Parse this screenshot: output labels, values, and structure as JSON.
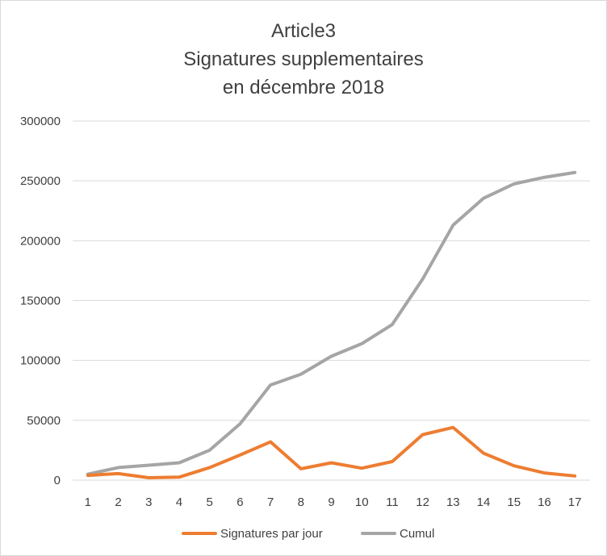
{
  "chart_data": {
    "type": "line",
    "title_lines": [
      "Article3",
      "Signatures supplementaires",
      "en décembre  2018"
    ],
    "xlabel": "",
    "ylabel": "",
    "x": [
      1,
      2,
      3,
      4,
      5,
      6,
      7,
      8,
      9,
      10,
      11,
      12,
      13,
      14,
      15,
      16,
      17
    ],
    "ylim": [
      0,
      300000
    ],
    "yticks": [
      0,
      50000,
      100000,
      150000,
      200000,
      250000,
      300000
    ],
    "grid": true,
    "legend_position": "bottom",
    "series": [
      {
        "name": "Signatures par jour",
        "color": "#ED7D31",
        "values": [
          4000,
          5500,
          2000,
          2500,
          10500,
          21000,
          32000,
          9500,
          14500,
          10000,
          15500,
          38000,
          44000,
          22500,
          12000,
          6000,
          3500
        ]
      },
      {
        "name": "Cumul",
        "color": "#A5A5A5",
        "values": [
          5000,
          10500,
          12500,
          14500,
          25000,
          47000,
          79500,
          88500,
          103500,
          114000,
          130000,
          168000,
          213000,
          235500,
          247500,
          253000,
          257000
        ]
      }
    ]
  }
}
